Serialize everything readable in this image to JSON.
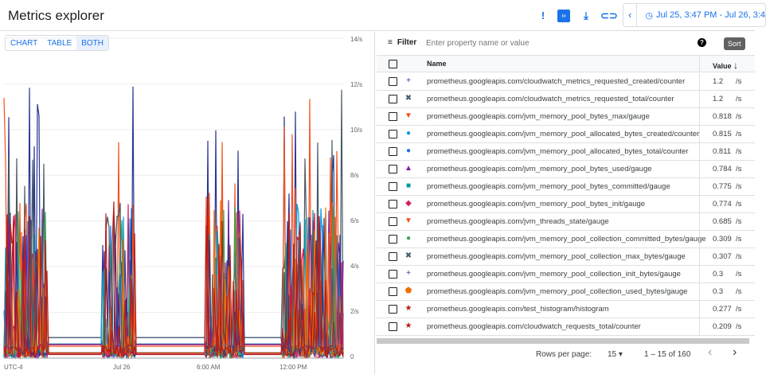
{
  "header": {
    "title": "Metrics explorer",
    "icons": [
      "feedback-icon",
      "code-icon",
      "download-icon",
      "link-icon"
    ],
    "time_range": "Jul 25, 3:47 PM - Jul 26, 3:4"
  },
  "view_toggle": {
    "options": [
      "CHART",
      "TABLE",
      "BOTH"
    ],
    "selected": "BOTH"
  },
  "chart_data": {
    "type": "line",
    "yticks": [
      "14/s",
      "12/s",
      "10/s",
      "8/s",
      "6/s",
      "4/s",
      "2/s",
      "0"
    ],
    "ylim": [
      0,
      14
    ],
    "xticks": [
      "UTC-4",
      "Jul 26",
      "6:00 AM",
      "12:00 PM"
    ],
    "grid": true
  },
  "filter": {
    "label": "Filter",
    "placeholder": "Enter property name or value",
    "sort_tooltip": "Sort"
  },
  "table": {
    "columns": [
      "Name",
      "Value"
    ],
    "rows": [
      {
        "marker": "+",
        "color": "#283593",
        "name": "prometheus.googleapis.com/cloudwatch_metrics_requested_created/counter",
        "value": "1.2",
        "unit": "/s"
      },
      {
        "marker": "✖",
        "color": "#455a64",
        "name": "prometheus.googleapis.com/cloudwatch_metrics_requested_total/counter",
        "value": "1.2",
        "unit": "/s"
      },
      {
        "marker": "▼",
        "color": "#f4511e",
        "name": "prometheus.googleapis.com/jvm_memory_pool_bytes_max/gauge",
        "value": "0.818",
        "unit": "/s"
      },
      {
        "marker": "●",
        "color": "#039be5",
        "name": "prometheus.googleapis.com/jvm_memory_pool_allocated_bytes_created/counter",
        "value": "0.815",
        "unit": "/s"
      },
      {
        "marker": "●",
        "color": "#1a73e8",
        "name": "prometheus.googleapis.com/jvm_memory_pool_allocated_bytes_total/counter",
        "value": "0.811",
        "unit": "/s"
      },
      {
        "marker": "▲",
        "color": "#7b1fa2",
        "name": "prometheus.googleapis.com/jvm_memory_pool_bytes_used/gauge",
        "value": "0.784",
        "unit": "/s"
      },
      {
        "marker": "■",
        "color": "#0097a7",
        "name": "prometheus.googleapis.com/jvm_memory_pool_bytes_committed/gauge",
        "value": "0.775",
        "unit": "/s"
      },
      {
        "marker": "◆",
        "color": "#d81b60",
        "name": "prometheus.googleapis.com/jvm_memory_pool_bytes_init/gauge",
        "value": "0.774",
        "unit": "/s"
      },
      {
        "marker": "▼",
        "color": "#f4511e",
        "name": "prometheus.googleapis.com/jvm_threads_state/gauge",
        "value": "0.685",
        "unit": "/s"
      },
      {
        "marker": "●",
        "color": "#33a853",
        "name": "prometheus.googleapis.com/jvm_memory_pool_collection_committed_bytes/gauge",
        "value": "0.309",
        "unit": "/s"
      },
      {
        "marker": "✖",
        "color": "#455a64",
        "name": "prometheus.googleapis.com/jvm_memory_pool_collection_max_bytes/gauge",
        "value": "0.307",
        "unit": "/s"
      },
      {
        "marker": "+",
        "color": "#283593",
        "name": "prometheus.googleapis.com/jvm_memory_pool_collection_init_bytes/gauge",
        "value": "0.3",
        "unit": "/s"
      },
      {
        "marker": "⬟",
        "color": "#ef6c00",
        "name": "prometheus.googleapis.com/jvm_memory_pool_collection_used_bytes/gauge",
        "value": "0.3",
        "unit": "/s"
      },
      {
        "marker": "★",
        "color": "#b71c1c",
        "name": "prometheus.googleapis.com/test_histogram/histogram",
        "value": "0.277",
        "unit": "/s"
      },
      {
        "marker": "★",
        "color": "#b71c1c",
        "name": "prometheus.googleapis.com/cloudwatch_requests_total/counter",
        "value": "0.209",
        "unit": "/s"
      }
    ]
  },
  "pagination": {
    "rows_per_page_label": "Rows per page:",
    "rows_per_page": "15",
    "range": "1 – 15 of 160"
  }
}
